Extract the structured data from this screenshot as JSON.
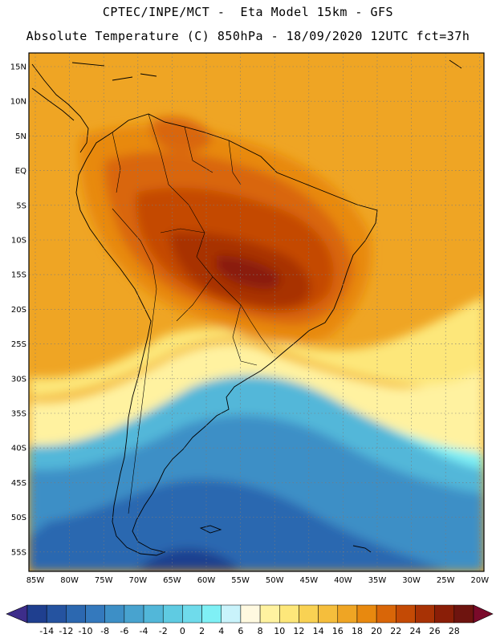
{
  "header": {
    "line1": "CPTEC/INPE/MCT -  Eta Model 15km - GFS",
    "line2": "Absolute Temperature (C) 850hPa - 18/09/2020 12UTC fct=37h"
  },
  "axes": {
    "lat_labels": [
      "15N",
      "10N",
      "5N",
      "EQ",
      "5S",
      "10S",
      "15S",
      "20S",
      "25S",
      "30S",
      "35S",
      "40S",
      "45S",
      "50S",
      "55S"
    ],
    "lon_labels": [
      "85W",
      "80W",
      "75W",
      "70W",
      "65W",
      "60W",
      "55W",
      "50W",
      "45W",
      "40W",
      "35W",
      "30W",
      "25W",
      "20W"
    ]
  },
  "colorbar": {
    "levels": [
      "-14",
      "-12",
      "-10",
      "-8",
      "-6",
      "-4",
      "-2",
      "0",
      "2",
      "4",
      "6",
      "8",
      "10",
      "12",
      "14",
      "16",
      "18",
      "20",
      "22",
      "24",
      "26",
      "28"
    ],
    "colors": [
      "#1f3f8f",
      "#2553a0",
      "#2c68b0",
      "#3479bd",
      "#3d8fc6",
      "#48a3cf",
      "#52b7d9",
      "#5fcbe2",
      "#6fdbeb",
      "#7ff0f5",
      "#c9f3fb",
      "#fff9e0",
      "#fff2a0",
      "#fde77a",
      "#f9d253",
      "#f5be3c",
      "#efa524",
      "#e8890f",
      "#d96608",
      "#c44a05",
      "#a83205",
      "#8a1e07",
      "#6e140f"
    ],
    "low_arrow_color": "#3d2d8a",
    "high_arrow_color": "#7a0a2a"
  }
}
